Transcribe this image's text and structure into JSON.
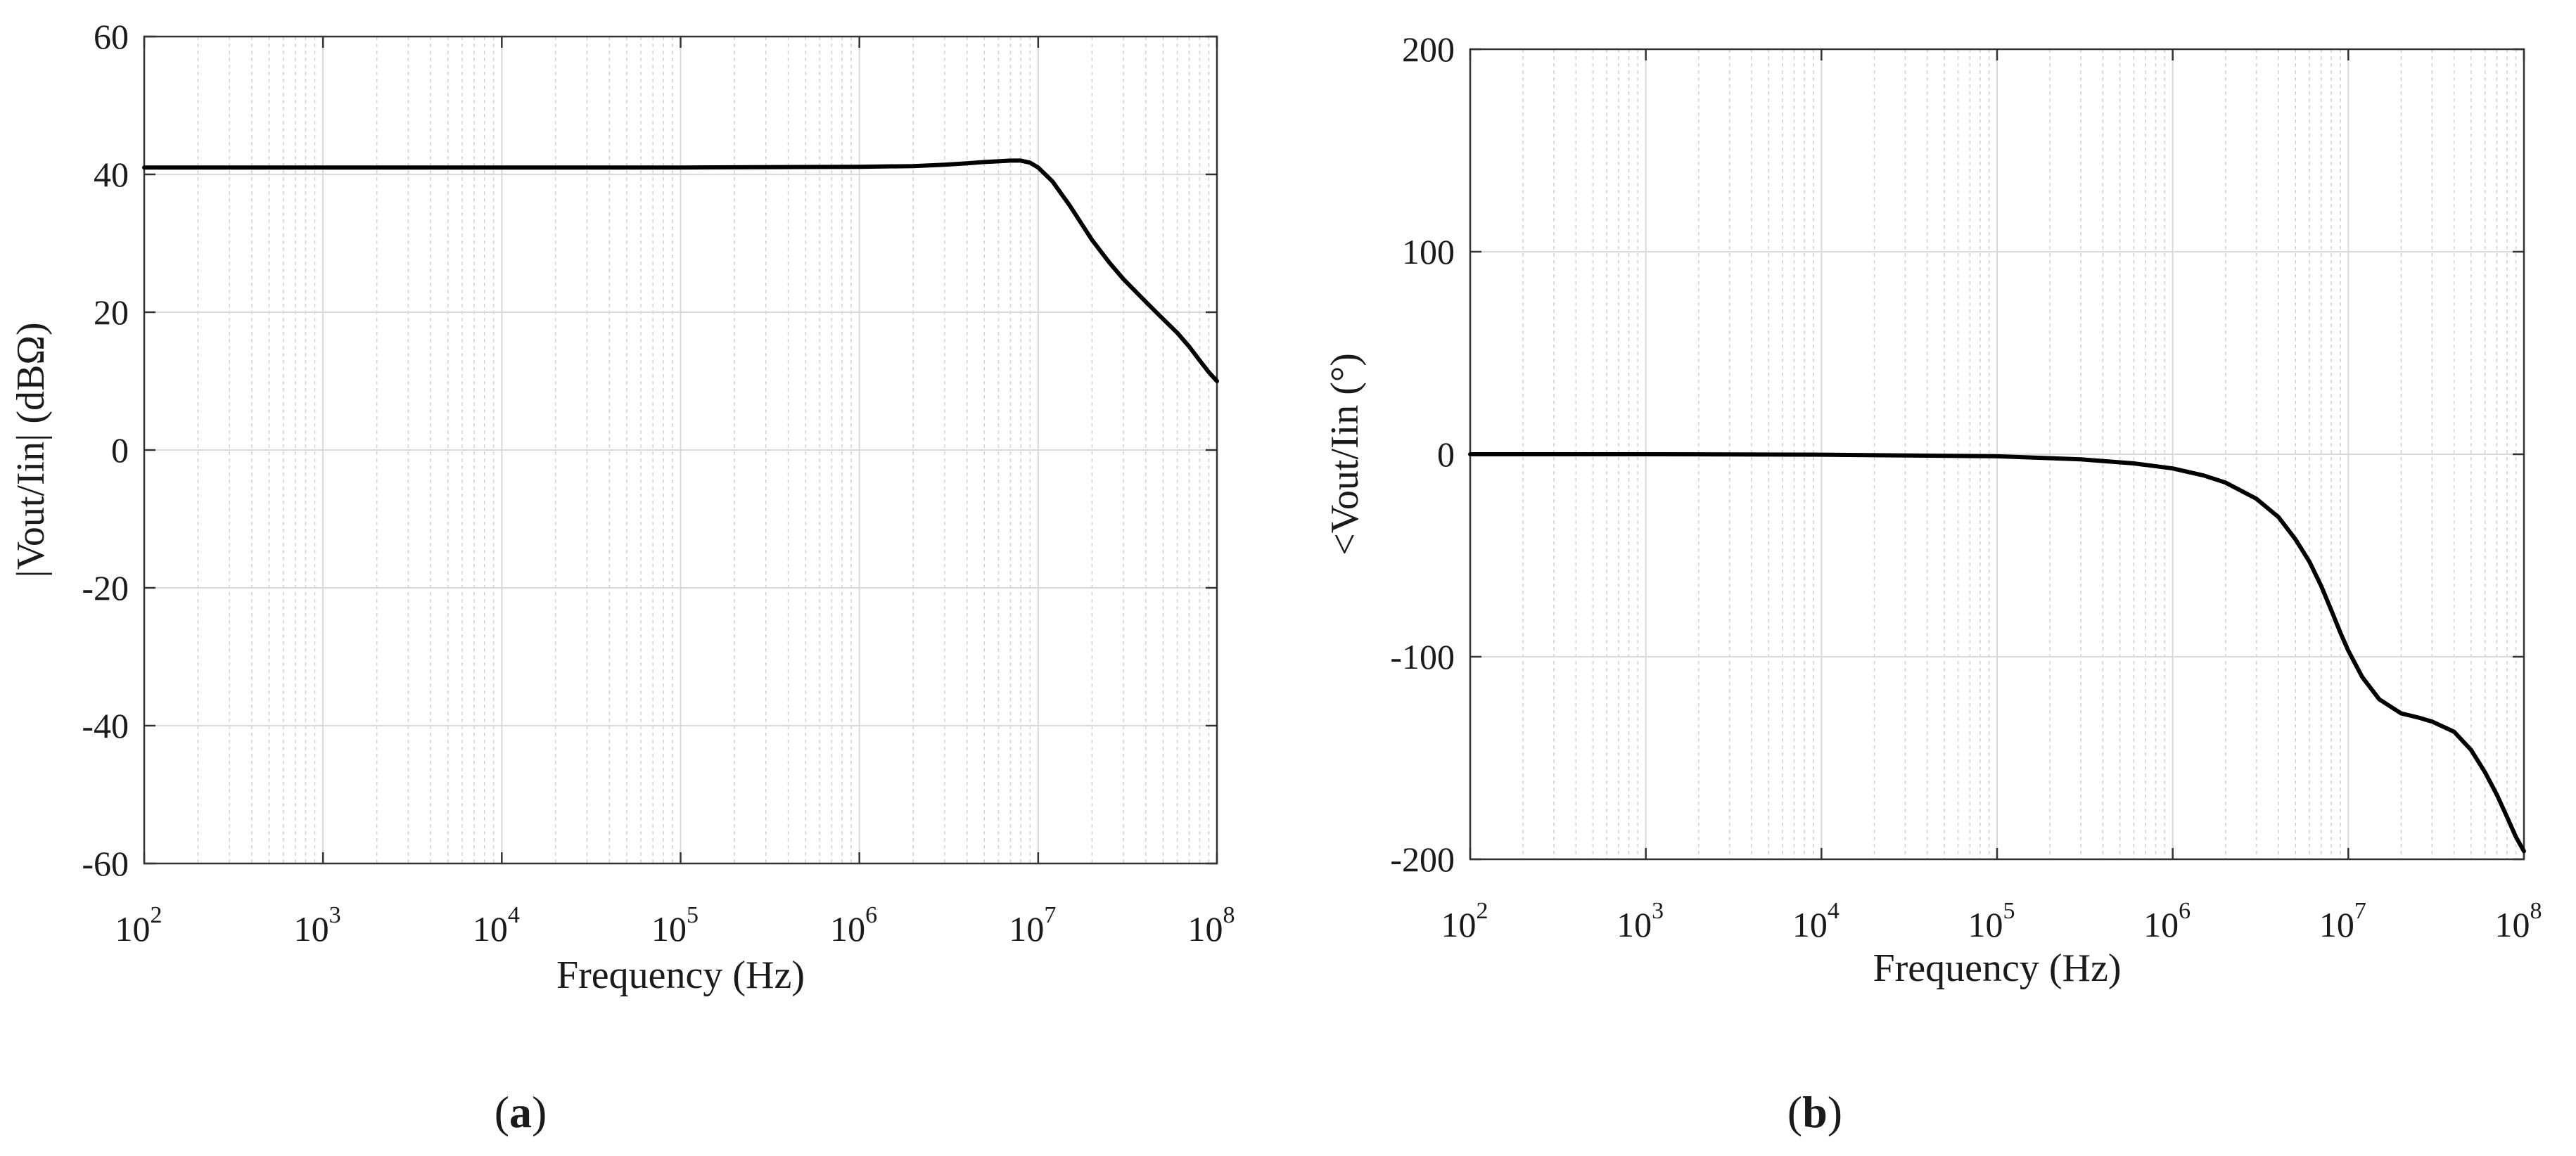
{
  "chart_data": [
    {
      "type": "line",
      "panel": "(a)",
      "xlabel": "Frequency (Hz)",
      "ylabel": "|Vout/Iin| (dBΩ)",
      "xscale": "log",
      "xlim": [
        100,
        100000000
      ],
      "ylim": [
        -60,
        60
      ],
      "x_ticks": [
        100,
        1000,
        10000,
        100000,
        1000000,
        10000000,
        100000000
      ],
      "y_ticks": [
        -60,
        -40,
        -20,
        0,
        20,
        40,
        60
      ],
      "grid": true,
      "color": "#000000",
      "series": [
        {
          "x": [
            100,
            1000,
            10000,
            100000,
            1000000,
            2000000,
            3000000,
            4000000,
            5000000,
            6000000,
            7000000,
            8000000,
            9000000,
            10000000,
            12000000,
            15000000,
            20000000,
            25000000,
            30000000,
            40000000,
            50000000,
            60000000,
            70000000,
            80000000,
            90000000,
            100000000
          ],
          "values": [
            41,
            41,
            41,
            41,
            41.1,
            41.2,
            41.4,
            41.6,
            41.8,
            41.9,
            42,
            42,
            41.7,
            41,
            39,
            35.5,
            30.5,
            27.2,
            24.8,
            21.5,
            19,
            17,
            15,
            13,
            11.3,
            10
          ]
        }
      ]
    },
    {
      "type": "line",
      "panel": "(b)",
      "xlabel": "Frequency (Hz)",
      "ylabel": "<Vout/Iin (°)",
      "xscale": "log",
      "xlim": [
        100,
        100000000
      ],
      "ylim": [
        -200,
        200
      ],
      "x_ticks": [
        100,
        1000,
        10000,
        100000,
        1000000,
        10000000,
        100000000
      ],
      "y_ticks": [
        -200,
        -100,
        0,
        100,
        200
      ],
      "grid": true,
      "color": "#000000",
      "series": [
        {
          "x": [
            100,
            1000,
            10000,
            100000,
            300000,
            600000,
            1000000,
            1500000,
            2000000,
            3000000,
            4000000,
            5000000,
            6000000,
            7000000,
            8000000,
            9000000,
            10000000,
            12000000,
            15000000,
            20000000,
            25000000,
            30000000,
            40000000,
            50000000,
            60000000,
            70000000,
            80000000,
            90000000,
            100000000
          ],
          "values": [
            0,
            0,
            -0.2,
            -1,
            -2.5,
            -4.5,
            -7,
            -10.5,
            -14,
            -22,
            -31,
            -42,
            -53,
            -65,
            -77,
            -88,
            -97,
            -110,
            -121,
            -128,
            -130,
            -132,
            -137,
            -146,
            -157,
            -168,
            -179,
            -189,
            -196
          ]
        }
      ]
    }
  ]
}
